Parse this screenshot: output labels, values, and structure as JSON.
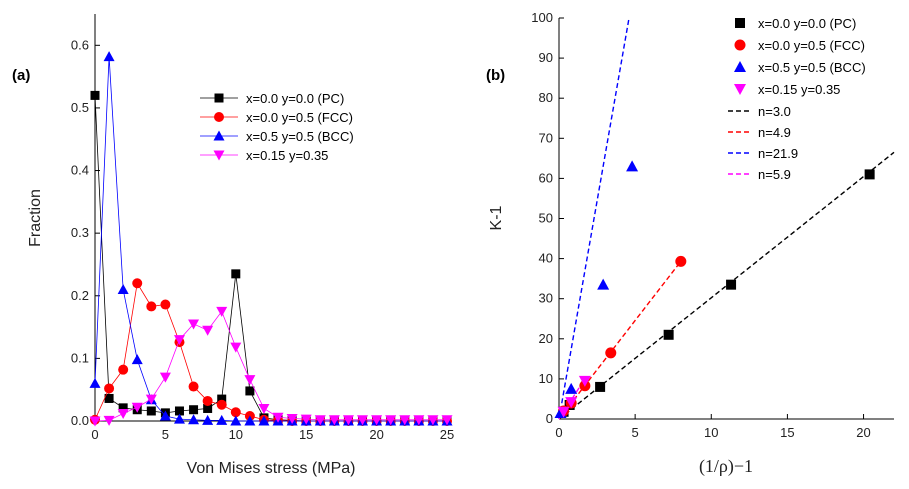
{
  "colors": {
    "PC": "#000000",
    "FCC": "#ff0000",
    "BCC": "#0000ff",
    "X": "#ff00ff"
  },
  "chart_data": [
    {
      "type": "line",
      "panel_label": "(a)",
      "xlabel": "Von Mises stress (MPa)",
      "ylabel": "Fraction",
      "xlim": [
        0,
        25
      ],
      "ylim": [
        0,
        0.65
      ],
      "xticks": [
        0,
        5,
        10,
        15,
        20,
        25
      ],
      "yticks": [
        0.0,
        0.1,
        0.2,
        0.3,
        0.4,
        0.5,
        0.6
      ],
      "ytick_labels": [
        "0.0",
        "0.1",
        "0.2",
        "0.3",
        "0.4",
        "0.5",
        "0.6"
      ],
      "legend_position": "top-right",
      "series": [
        {
          "key": "PC",
          "name": "x=0.0 y=0.0 (PC)",
          "marker": "square",
          "color": "#000000",
          "x": [
            0,
            1,
            2,
            3,
            4,
            5,
            6,
            7,
            8,
            9,
            10,
            11,
            12,
            13,
            14,
            15,
            16,
            17,
            18,
            19,
            20,
            21,
            22,
            23,
            24,
            25
          ],
          "y": [
            0.52,
            0.036,
            0.021,
            0.018,
            0.016,
            0.013,
            0.016,
            0.018,
            0.02,
            0.035,
            0.235,
            0.048,
            0.005,
            0.002,
            0.001,
            0,
            0,
            0,
            0,
            0,
            0,
            0,
            0,
            0,
            0,
            0
          ]
        },
        {
          "key": "FCC",
          "name": "x=0.0 y=0.5 (FCC)",
          "marker": "circle",
          "color": "#ff0000",
          "x": [
            0,
            1,
            2,
            3,
            4,
            5,
            6,
            7,
            8,
            9,
            10,
            11,
            12,
            13,
            14,
            15,
            16,
            17,
            18,
            19,
            20,
            21,
            22,
            23,
            24,
            25
          ],
          "y": [
            0.002,
            0.052,
            0.082,
            0.22,
            0.183,
            0.186,
            0.126,
            0.055,
            0.032,
            0.026,
            0.014,
            0.008,
            0.002,
            0.001,
            0,
            0,
            0,
            0,
            0,
            0,
            0,
            0,
            0,
            0,
            0,
            0
          ]
        },
        {
          "key": "BCC",
          "name": "x=0.5 y=0.5 (BCC)",
          "marker": "triangle-up",
          "color": "#0000ff",
          "x": [
            0,
            1,
            2,
            3,
            4,
            5,
            6,
            7,
            8,
            9,
            10,
            11,
            12,
            13,
            14,
            15,
            16,
            17,
            18,
            19,
            20,
            21,
            22,
            23,
            24,
            25
          ],
          "y": [
            0.06,
            0.582,
            0.21,
            0.098,
            0.034,
            0.008,
            0.003,
            0.002,
            0.001,
            0.001,
            0,
            0,
            0,
            0,
            0,
            0,
            0,
            0,
            0,
            0,
            0,
            0,
            0,
            0,
            0,
            0
          ]
        },
        {
          "key": "X",
          "name": "x=0.15 y=0.35",
          "marker": "triangle-down",
          "color": "#ff00ff",
          "x": [
            0,
            1,
            2,
            3,
            4,
            5,
            6,
            7,
            8,
            9,
            10,
            11,
            12,
            13,
            14,
            15,
            16,
            17,
            18,
            19,
            20,
            21,
            22,
            23,
            24,
            25
          ],
          "y": [
            0,
            0.001,
            0.012,
            0.022,
            0.035,
            0.07,
            0.13,
            0.155,
            0.145,
            0.175,
            0.118,
            0.066,
            0.02,
            0.006,
            0.004,
            0.003,
            0.002,
            0.002,
            0.002,
            0.002,
            0.002,
            0.002,
            0.002,
            0.002,
            0.002,
            0.002
          ]
        }
      ]
    },
    {
      "type": "scatter",
      "panel_label": "(b)",
      "xlabel": "(1/ρ)−1",
      "ylabel": "K-1",
      "xlim": [
        0,
        22
      ],
      "ylim": [
        0,
        100
      ],
      "xticks": [
        0,
        5,
        10,
        15,
        20
      ],
      "yticks": [
        0,
        10,
        20,
        30,
        40,
        50,
        60,
        70,
        80,
        90,
        100
      ],
      "legend_position": "top-right",
      "series": [
        {
          "key": "PC",
          "name": "x=0.0 y=0.0 (PC)",
          "marker": "square",
          "color": "#000000",
          "x": [
            0.3,
            0.7,
            2.7,
            7.2,
            11.3,
            20.4
          ],
          "y": [
            1.8,
            3.5,
            8.0,
            21.0,
            33.5,
            61.0
          ]
        },
        {
          "key": "FCC",
          "name": "x=0.0 y=0.5 (FCC)",
          "marker": "circle",
          "color": "#ff0000",
          "x": [
            0.3,
            0.8,
            1.7,
            3.4,
            8.0
          ],
          "y": [
            2.0,
            4.0,
            8.3,
            16.5,
            39.3
          ]
        },
        {
          "key": "BCC",
          "name": "x=0.5 y=0.5 (BCC)",
          "marker": "triangle-up",
          "color": "#0000ff",
          "x": [
            0.1,
            0.8,
            2.9,
            4.8
          ],
          "y": [
            1.5,
            7.5,
            33.5,
            63.0
          ]
        },
        {
          "key": "X",
          "name": "x=0.15 y=0.35",
          "marker": "triangle-down",
          "color": "#ff00ff",
          "x": [
            0.3,
            0.8,
            1.7
          ],
          "y": [
            1.8,
            4.2,
            9.5
          ]
        }
      ],
      "fit_lines": [
        {
          "name": "n=3.0",
          "color": "#000000",
          "x": [
            0,
            22
          ],
          "y": [
            0,
            66.5
          ]
        },
        {
          "name": "n=4.9",
          "color": "#ff0000",
          "x": [
            0,
            8
          ],
          "y": [
            0,
            39.3
          ]
        },
        {
          "name": "n=21.9",
          "color": "#0000ff",
          "x": [
            0,
            4.6
          ],
          "y": [
            0,
            100
          ]
        },
        {
          "name": "n=5.9",
          "color": "#ff00ff",
          "x": [
            0,
            1.7
          ],
          "y": [
            0,
            10
          ]
        }
      ]
    }
  ]
}
